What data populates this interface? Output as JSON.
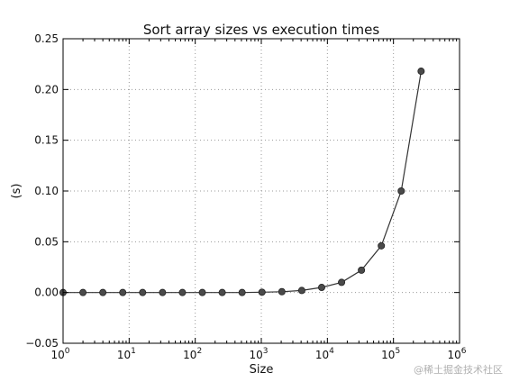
{
  "chart_data": {
    "type": "line",
    "title": "Sort array sizes vs execution times",
    "xlabel": "Size",
    "ylabel": "(s)",
    "xscale": "log",
    "xlim": [
      1,
      1000000
    ],
    "ylim": [
      -0.05,
      0.25
    ],
    "grid": true,
    "x_ticks": [
      {
        "value": 1,
        "label": "10",
        "exp": "0"
      },
      {
        "value": 10,
        "label": "10",
        "exp": "1"
      },
      {
        "value": 100,
        "label": "10",
        "exp": "2"
      },
      {
        "value": 1000,
        "label": "10",
        "exp": "3"
      },
      {
        "value": 10000,
        "label": "10",
        "exp": "4"
      },
      {
        "value": 100000,
        "label": "10",
        "exp": "5"
      },
      {
        "value": 1000000,
        "label": "10",
        "exp": "6"
      }
    ],
    "y_ticks": [
      {
        "value": -0.05,
        "label": "−0.05"
      },
      {
        "value": 0.0,
        "label": "0.00"
      },
      {
        "value": 0.05,
        "label": "0.05"
      },
      {
        "value": 0.1,
        "label": "0.10"
      },
      {
        "value": 0.15,
        "label": "0.15"
      },
      {
        "value": 0.2,
        "label": "0.20"
      },
      {
        "value": 0.25,
        "label": "0.25"
      }
    ],
    "series": [
      {
        "x": [
          1,
          2,
          4,
          8,
          16,
          32,
          64,
          128,
          256,
          512,
          1024,
          2048,
          4096,
          8192,
          16384,
          32768,
          65536,
          131072,
          262144
        ],
        "y": [
          0.0,
          0.0,
          0.0,
          0.0,
          0.0,
          0.0,
          0.0,
          0.0,
          0.0,
          0.0,
          0.0003,
          0.0008,
          0.002,
          0.005,
          0.01,
          0.022,
          0.046,
          0.1,
          0.218
        ],
        "color": "#333333",
        "marker": "circle"
      }
    ]
  },
  "watermark": "@稀土掘金技术社区"
}
